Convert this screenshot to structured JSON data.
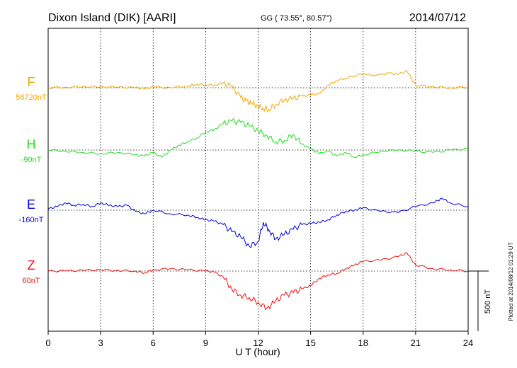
{
  "header": {
    "station": "Dixon Island (DIK)  [AARI]",
    "coords": "GG ( 73.55°,  80.57°)",
    "date": "2014/07/12"
  },
  "footer_note": "Plotted at 2014/08/12 01:29 UT",
  "scale_label": "500 nT",
  "chart_data": {
    "type": "line",
    "title": "Dixon Island (DIK)  [AARI]",
    "xlabel": "U T (hour)",
    "ylabel": "",
    "xlim": [
      0,
      24
    ],
    "x_ticks": [
      "0",
      "3",
      "6",
      "9",
      "12",
      "15",
      "18",
      "21",
      "24"
    ],
    "grid": true,
    "scale_bar_nT": 500,
    "series": [
      {
        "name": "F",
        "baseline_label": "58720nT",
        "color": "#f5a800",
        "x": [
          0,
          1,
          2,
          3,
          4,
          5,
          5.5,
          6,
          7,
          8,
          8.5,
          9,
          9.5,
          10,
          10.5,
          11,
          11.3,
          11.6,
          12,
          12.3,
          12.6,
          13,
          13.5,
          14,
          14.5,
          15,
          15.5,
          16,
          16.5,
          17,
          17.5,
          18,
          18.5,
          19,
          19.5,
          20,
          20.5,
          21,
          22,
          23,
          24
        ],
        "y": [
          0,
          5,
          10,
          8,
          5,
          0,
          -10,
          5,
          0,
          15,
          30,
          25,
          20,
          40,
          10,
          -80,
          -110,
          -130,
          -150,
          -170,
          -180,
          -140,
          -100,
          -90,
          -70,
          -60,
          -50,
          20,
          60,
          80,
          100,
          120,
          100,
          110,
          120,
          110,
          140,
          20,
          10,
          0,
          5
        ]
      },
      {
        "name": "H",
        "baseline_label": "-90nT",
        "color": "#22dd22",
        "x": [
          0,
          1,
          2,
          3,
          4,
          5,
          5.5,
          6,
          6.5,
          7,
          7.5,
          8,
          8.5,
          9,
          9.5,
          10,
          10.5,
          11,
          11.5,
          12,
          12.5,
          13,
          13.5,
          14,
          14.5,
          15,
          15.5,
          16,
          16.5,
          17,
          17.5,
          18,
          19,
          20,
          21,
          22,
          23,
          24
        ],
        "y": [
          0,
          -10,
          -20,
          -30,
          -20,
          -40,
          -50,
          -20,
          -60,
          0,
          40,
          70,
          100,
          150,
          170,
          220,
          240,
          230,
          200,
          160,
          120,
          70,
          80,
          130,
          50,
          10,
          -30,
          -10,
          -50,
          -20,
          -60,
          -40,
          -10,
          0,
          -10,
          -20,
          0,
          10
        ]
      },
      {
        "name": "E",
        "baseline_label": "-160nT",
        "color": "#0000dd",
        "x": [
          0,
          0.5,
          1,
          1.5,
          2,
          2.5,
          3,
          3.5,
          4,
          4.5,
          5,
          5.5,
          6,
          7,
          8,
          8.5,
          9,
          9.5,
          10,
          10.5,
          11,
          11.5,
          12,
          12.3,
          12.6,
          13,
          13.5,
          14,
          14.5,
          15,
          15.5,
          16,
          16.5,
          17,
          17.5,
          18,
          19,
          20,
          21,
          22,
          22.5,
          23,
          24
        ],
        "y": [
          10,
          30,
          60,
          40,
          50,
          30,
          60,
          40,
          30,
          40,
          -10,
          -30,
          0,
          -30,
          -40,
          -60,
          -80,
          -90,
          -120,
          -180,
          -220,
          -300,
          -260,
          -100,
          -160,
          -240,
          -200,
          -160,
          -120,
          -110,
          -100,
          -80,
          -40,
          -10,
          0,
          20,
          -10,
          -20,
          30,
          60,
          100,
          60,
          30
        ]
      },
      {
        "name": "Z",
        "baseline_label": "60nT",
        "color": "#ee1111",
        "x": [
          0,
          1,
          2,
          3,
          4,
          5,
          5.5,
          6,
          7,
          8,
          9,
          9.5,
          10,
          10.5,
          11,
          11.5,
          12,
          12.5,
          13,
          13.5,
          14,
          14.5,
          15,
          15.5,
          16,
          16.5,
          17,
          17.5,
          18,
          19,
          20,
          20.5,
          21,
          22,
          23,
          24
        ],
        "y": [
          0,
          0,
          5,
          10,
          5,
          0,
          -15,
          10,
          20,
          10,
          0,
          -10,
          -50,
          -150,
          -200,
          -220,
          -260,
          -310,
          -250,
          -200,
          -180,
          -150,
          -120,
          -60,
          -30,
          -20,
          20,
          50,
          80,
          90,
          120,
          150,
          50,
          20,
          10,
          0
        ]
      }
    ]
  }
}
